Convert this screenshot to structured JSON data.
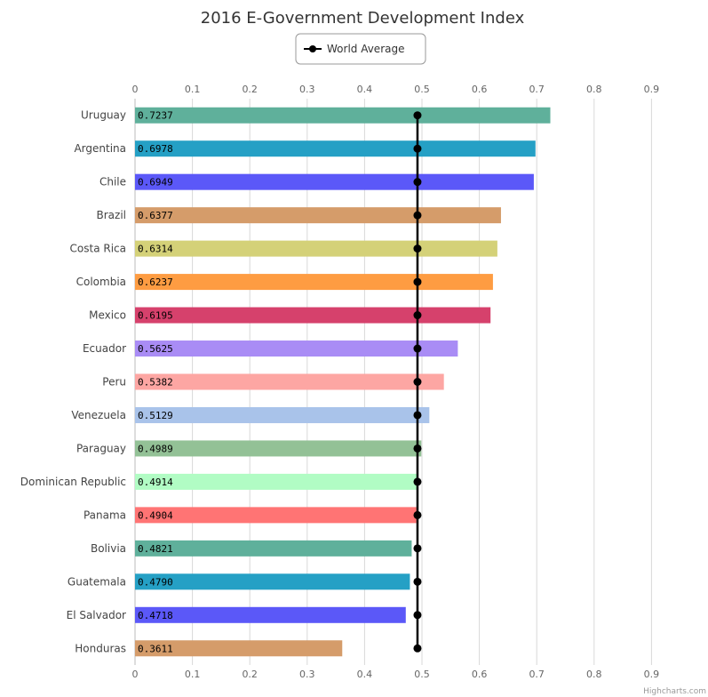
{
  "chart_data": {
    "type": "bar",
    "orientation": "horizontal",
    "title": "2016 E-Government Development Index",
    "categories": [
      "Uruguay",
      "Argentina",
      "Chile",
      "Brazil",
      "Costa Rica",
      "Colombia",
      "Mexico",
      "Ecuador",
      "Peru",
      "Venezuela",
      "Paraguay",
      "Dominican Republic",
      "Panama",
      "Bolivia",
      "Guatemala",
      "El Salvador",
      "Honduras"
    ],
    "values": [
      0.7237,
      0.6978,
      0.6949,
      0.6377,
      0.6314,
      0.6237,
      0.6195,
      0.5625,
      0.5382,
      0.5129,
      0.4989,
      0.4914,
      0.4904,
      0.4821,
      0.479,
      0.4718,
      0.3611
    ],
    "value_labels": [
      "0.7237",
      "0.6978",
      "0.6949",
      "0.6377",
      "0.6314",
      "0.6237",
      "0.6195",
      "0.5625",
      "0.5382",
      "0.5129",
      "0.4989",
      "0.4914",
      "0.4904",
      "0.4821",
      "0.4790",
      "0.4718",
      "0.3611"
    ],
    "bar_colors": [
      "#5fb09b",
      "#25a0c5",
      "#5b58f8",
      "#d59c6a",
      "#d4d178",
      "#fe9c42",
      "#d6416c",
      "#a98cf5",
      "#fda6a3",
      "#a9c3ea",
      "#93c196",
      "#b1fcc4",
      "#ff7474",
      "#5fb09b",
      "#25a0c5",
      "#5b58f8",
      "#d59c6a"
    ],
    "series": [
      {
        "name": "World Average",
        "type": "line",
        "value": 0.4922,
        "color": "#000000"
      }
    ],
    "x_ticks": [
      "0",
      "0.1",
      "0.2",
      "0.3",
      "0.4",
      "0.5",
      "0.6",
      "0.7",
      "0.8",
      "0.9"
    ],
    "xlim": [
      0,
      1
    ],
    "grid": true,
    "legend_position": "top-center",
    "credit": "Highcharts.com"
  }
}
